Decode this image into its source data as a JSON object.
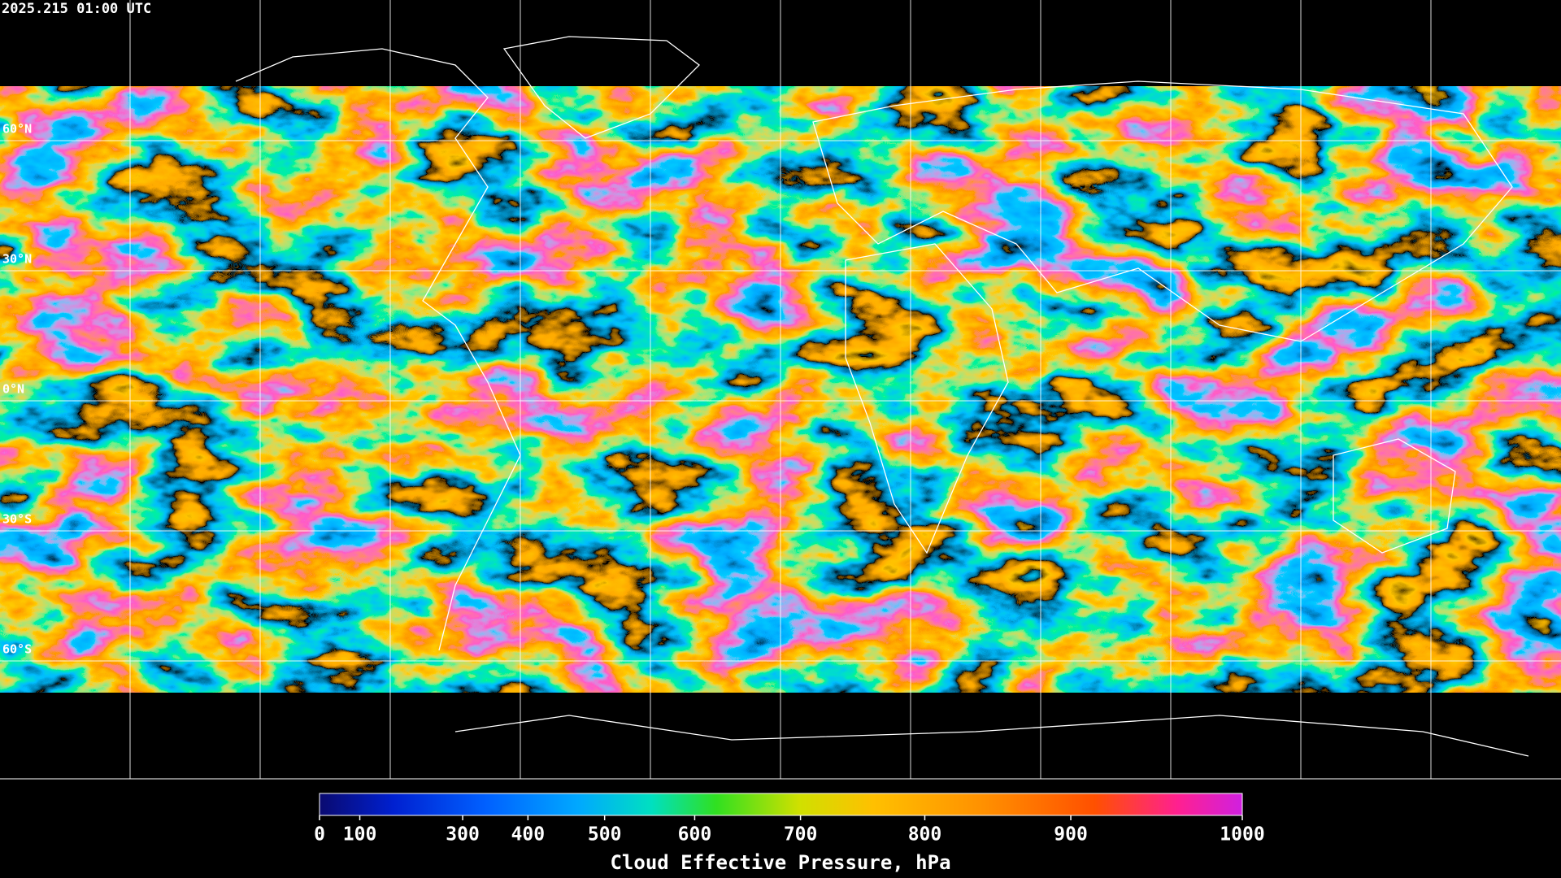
{
  "header": {
    "timestamp": "2025.215 01:00 UTC"
  },
  "map": {
    "latitude_labels": [
      "60°N",
      "30°N",
      "0°N",
      "30°S",
      "60°S"
    ]
  },
  "colorbar": {
    "title": "Cloud Effective Pressure, hPa",
    "clim": [
      0,
      1000
    ],
    "ticks": [
      0,
      100,
      300,
      400,
      500,
      600,
      700,
      800,
      900,
      1000
    ]
  }
}
